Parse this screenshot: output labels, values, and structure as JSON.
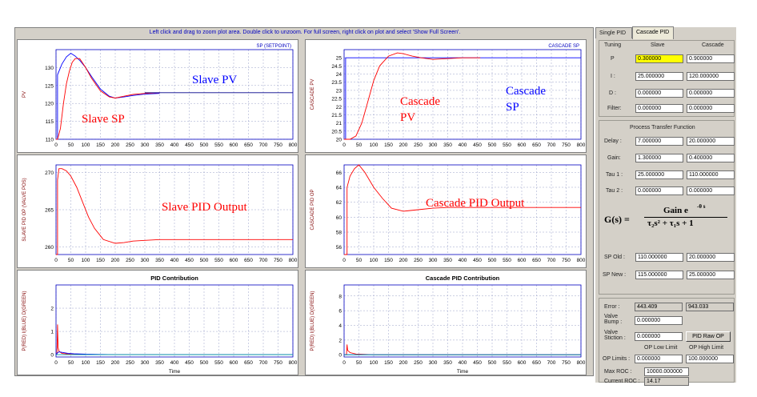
{
  "plot_hint": "Left click and drag to zoom plot area. Double click to unzoom. For full screen, right click on plot and select 'Show Full Screen'.",
  "colors": {
    "red": "#ff0000",
    "blue": "#0000ff",
    "navy": "#00008b",
    "grid": "#9aa0c8",
    "cyan": "#00a0a0",
    "green": "#008000"
  },
  "tabs": {
    "single": "Single PID",
    "cascade": "Cascade PID"
  },
  "tuning": {
    "header_tuning": "Tuning",
    "header_slave": "Slave",
    "header_cascade": "Cascade",
    "rows": [
      {
        "label": "P",
        "slave": "0.300000",
        "cascade": "0.900000"
      },
      {
        "label": "I :",
        "slave": "25.000000",
        "cascade": "120.000000"
      },
      {
        "label": "D :",
        "slave": "0.000000",
        "cascade": "0.000000"
      },
      {
        "label": "Filter:",
        "slave": "0.000000",
        "cascade": "0.000000"
      }
    ]
  },
  "process": {
    "title": "Process Transfer Function",
    "rows": [
      {
        "label": "Delay :",
        "slave": "7.000000",
        "cascade": "20.000000"
      },
      {
        "label": "Gain:",
        "slave": "1.300000",
        "cascade": "0.400000"
      },
      {
        "label": "Tau 1 :",
        "slave": "25.000000",
        "cascade": "110.000000"
      },
      {
        "label": "Tau 2 :",
        "slave": "0.000000",
        "cascade": "0.000000"
      }
    ],
    "formula": {
      "lhs": "G(s) =",
      "numerator": "Gain e",
      "exponent": "-θ s",
      "denominator": "τ₂s² + τ₁s + 1"
    }
  },
  "setpoints": {
    "rows": [
      {
        "label": "SP Old :",
        "slave": "110.000000",
        "cascade": "20.000000"
      },
      {
        "label": "SP New :",
        "slave": "115.000000",
        "cascade": "25.000000"
      }
    ]
  },
  "status": {
    "error_label": "Error :",
    "error_slave": "443.409",
    "error_cascade": "943.033",
    "bump_label_1": "Valve",
    "bump_label_2": "Bump :",
    "bump_value": "0.000000",
    "stiction_label_1": "Valve",
    "stiction_label_2": "Stiction :",
    "stiction_value": "0.000000",
    "raw_op_button": "PID Raw OP",
    "op_low_header": "OP Low Limit",
    "op_high_header": "OP High Limit",
    "op_limits_label": "OP Limits :",
    "op_low": "0.000000",
    "op_high": "100.000000",
    "max_roc_label": "Max ROC :",
    "max_roc": "10000.000000",
    "current_roc_label": "Current ROC :",
    "current_roc": "14.17"
  },
  "plots": {
    "slave_pv": {
      "ylabel": "PV",
      "legend": "SP (SETPOINT)",
      "ann1": "Slave PV",
      "ann2": "Slave SP"
    },
    "cascade_pv": {
      "ylabel": "CASCADE PV",
      "legend": "CASCADE SP",
      "ann1a": "Cascade",
      "ann1b": "PV",
      "ann2a": "Cascade",
      "ann2b": "SP"
    },
    "slave_op": {
      "ylabel": "SLAVE PID OP (VALVE POS)",
      "ann": "Slave PID Output"
    },
    "cascade_op": {
      "ylabel": "CASCADE PID OP",
      "ann": "Cascade PID Output"
    },
    "pid_contrib": {
      "title": "PID Contribution",
      "ylabel": "P(RED) I(BLUE) D(GREEN)",
      "xlabel": "Time"
    },
    "cascade_contrib": {
      "title": "Cascade PID Contribution",
      "ylabel": "P(RED) I(BLUE) D(GREEN)",
      "xlabel": "Time"
    }
  },
  "chart_data": [
    {
      "type": "line",
      "name": "slave-pv-chart",
      "xlim": [
        0,
        800
      ],
      "ylim": [
        110,
        135
      ],
      "xticks": [
        0,
        50,
        100,
        150,
        200,
        250,
        300,
        350,
        400,
        450,
        500,
        550,
        600,
        650,
        700,
        750,
        800
      ],
      "yticks": [
        110,
        115,
        120,
        125,
        130
      ],
      "ylabel": "PV",
      "legend": "SP (SETPOINT)",
      "series": [
        {
          "color": "#0000ff",
          "x": [
            0,
            5,
            5,
            20,
            35,
            50,
            65,
            80,
            100,
            120,
            150,
            180,
            200,
            230,
            260,
            300,
            350
          ],
          "y": [
            110,
            110,
            128,
            131,
            133,
            134,
            133.2,
            132,
            130,
            127.5,
            124,
            122,
            121.5,
            121.8,
            122.2,
            122.6,
            122.8
          ]
        },
        {
          "color": "#ff0000",
          "x": [
            0,
            5,
            15,
            25,
            35,
            45,
            55,
            65,
            80,
            100,
            120,
            150,
            180,
            200,
            230,
            260,
            300,
            350
          ],
          "y": [
            110,
            110,
            113,
            120,
            125.5,
            129,
            131.5,
            132.5,
            132.5,
            130,
            127,
            123.5,
            121.8,
            121.5,
            122,
            122.5,
            122.8,
            123
          ]
        },
        {
          "color": "#00008b",
          "x": [
            300,
            800
          ],
          "y": [
            123,
            123
          ]
        }
      ]
    },
    {
      "type": "line",
      "name": "cascade-pv-chart",
      "xlim": [
        0,
        800
      ],
      "ylim": [
        20,
        25.5
      ],
      "xticks": [
        0,
        50,
        100,
        150,
        200,
        250,
        300,
        350,
        400,
        450,
        500,
        550,
        600,
        650,
        700,
        750,
        800
      ],
      "yticks": [
        20,
        20.5,
        21,
        21.5,
        22,
        22.5,
        23,
        23.5,
        24,
        24.5,
        25
      ],
      "ylabel": "CASCADE PV",
      "legend": "CASCADE SP",
      "series": [
        {
          "color": "#0000ff",
          "x": [
            0,
            5,
            5,
            800
          ],
          "y": [
            20,
            20,
            25,
            25
          ]
        },
        {
          "color": "#ff0000",
          "x": [
            0,
            20,
            40,
            60,
            80,
            100,
            120,
            150,
            180,
            200,
            230,
            260,
            300,
            350,
            400,
            460
          ],
          "y": [
            20,
            20,
            20.2,
            21,
            22.3,
            23.6,
            24.5,
            25.1,
            25.3,
            25.25,
            25.1,
            25,
            24.9,
            24.95,
            25,
            25
          ]
        }
      ]
    },
    {
      "type": "line",
      "name": "slave-op-chart",
      "xlim": [
        0,
        800
      ],
      "ylim": [
        259,
        271
      ],
      "xticks": [
        0,
        50,
        100,
        150,
        200,
        250,
        300,
        350,
        400,
        450,
        500,
        550,
        600,
        650,
        700,
        750,
        800
      ],
      "yticks": [
        260,
        265,
        270
      ],
      "ylabel": "SLAVE PID OP (VALVE POS)",
      "series": [
        {
          "color": "#ff0000",
          "x": [
            0,
            5,
            5,
            10,
            20,
            35,
            50,
            70,
            90,
            110,
            130,
            160,
            200,
            230,
            260,
            300,
            350,
            800
          ],
          "y": [
            259,
            259,
            269,
            270.5,
            270.5,
            270.2,
            269.5,
            268,
            266,
            264,
            262.5,
            261,
            260.5,
            260.6,
            260.8,
            260.9,
            261,
            261
          ]
        }
      ]
    },
    {
      "type": "line",
      "name": "cascade-op-chart",
      "xlim": [
        0,
        800
      ],
      "ylim": [
        55,
        67
      ],
      "xticks": [
        0,
        50,
        100,
        150,
        200,
        250,
        300,
        350,
        400,
        450,
        500,
        550,
        600,
        650,
        700,
        750,
        800
      ],
      "yticks": [
        56,
        58,
        60,
        62,
        64,
        66
      ],
      "ylabel": "CASCADE PID OP",
      "series": [
        {
          "color": "#ff0000",
          "x": [
            0,
            10,
            10,
            20,
            35,
            50,
            70,
            100,
            130,
            160,
            200,
            250,
            300,
            350,
            400,
            800
          ],
          "y": [
            55,
            55,
            64,
            65.5,
            66.5,
            67,
            66,
            64,
            62.5,
            61.2,
            60.8,
            61,
            61.2,
            61.3,
            61.3,
            61.3
          ]
        }
      ]
    },
    {
      "type": "line",
      "name": "pid-contrib-chart",
      "title": "PID Contribution",
      "xlabel": "Time",
      "xlim": [
        0,
        800
      ],
      "ylim": [
        -0.1,
        3
      ],
      "xticks": [
        0,
        50,
        100,
        150,
        200,
        250,
        300,
        350,
        400,
        450,
        500,
        550,
        600,
        650,
        700,
        750,
        800
      ],
      "yticks": [
        0,
        1,
        2
      ],
      "ylabel": "P(RED) I(BLUE) D(GREEN)",
      "series": [
        {
          "color": "#ff0000",
          "x": [
            0,
            3,
            5,
            7,
            10,
            20,
            50,
            100,
            800
          ],
          "y": [
            0,
            0,
            1.3,
            0.3,
            0.15,
            0.05,
            0.02,
            0,
            0
          ]
        },
        {
          "color": "#0000ff",
          "x": [
            0,
            5,
            10,
            20,
            40,
            60,
            100,
            150,
            200,
            800
          ],
          "y": [
            0,
            0.08,
            0.12,
            0.1,
            0.06,
            0.04,
            0.02,
            0.01,
            0,
            0
          ]
        },
        {
          "color": "#00a0a0",
          "x": [
            0,
            800
          ],
          "y": [
            0,
            0
          ]
        }
      ]
    },
    {
      "type": "line",
      "name": "cascade-contrib-chart",
      "title": "Cascade PID Contribution",
      "xlabel": "Time",
      "xlim": [
        0,
        800
      ],
      "ylim": [
        -0.3,
        9.5
      ],
      "xticks": [
        0,
        50,
        100,
        150,
        200,
        250,
        300,
        350,
        400,
        450,
        500,
        550,
        600,
        650,
        700,
        750,
        800
      ],
      "yticks": [
        0,
        2,
        4,
        6,
        8
      ],
      "ylabel": "P(RED) I(BLUE) D(GREEN)",
      "series": [
        {
          "color": "#ff0000",
          "x": [
            0,
            8,
            10,
            12,
            20,
            40,
            100,
            800
          ],
          "y": [
            0,
            0,
            1.4,
            0.6,
            0.3,
            0.1,
            0,
            0
          ]
        },
        {
          "color": "#0000ff",
          "x": [
            0,
            800
          ],
          "y": [
            0,
            0
          ]
        },
        {
          "color": "#00a0a0",
          "x": [
            0,
            800
          ],
          "y": [
            0,
            0
          ]
        }
      ]
    }
  ]
}
